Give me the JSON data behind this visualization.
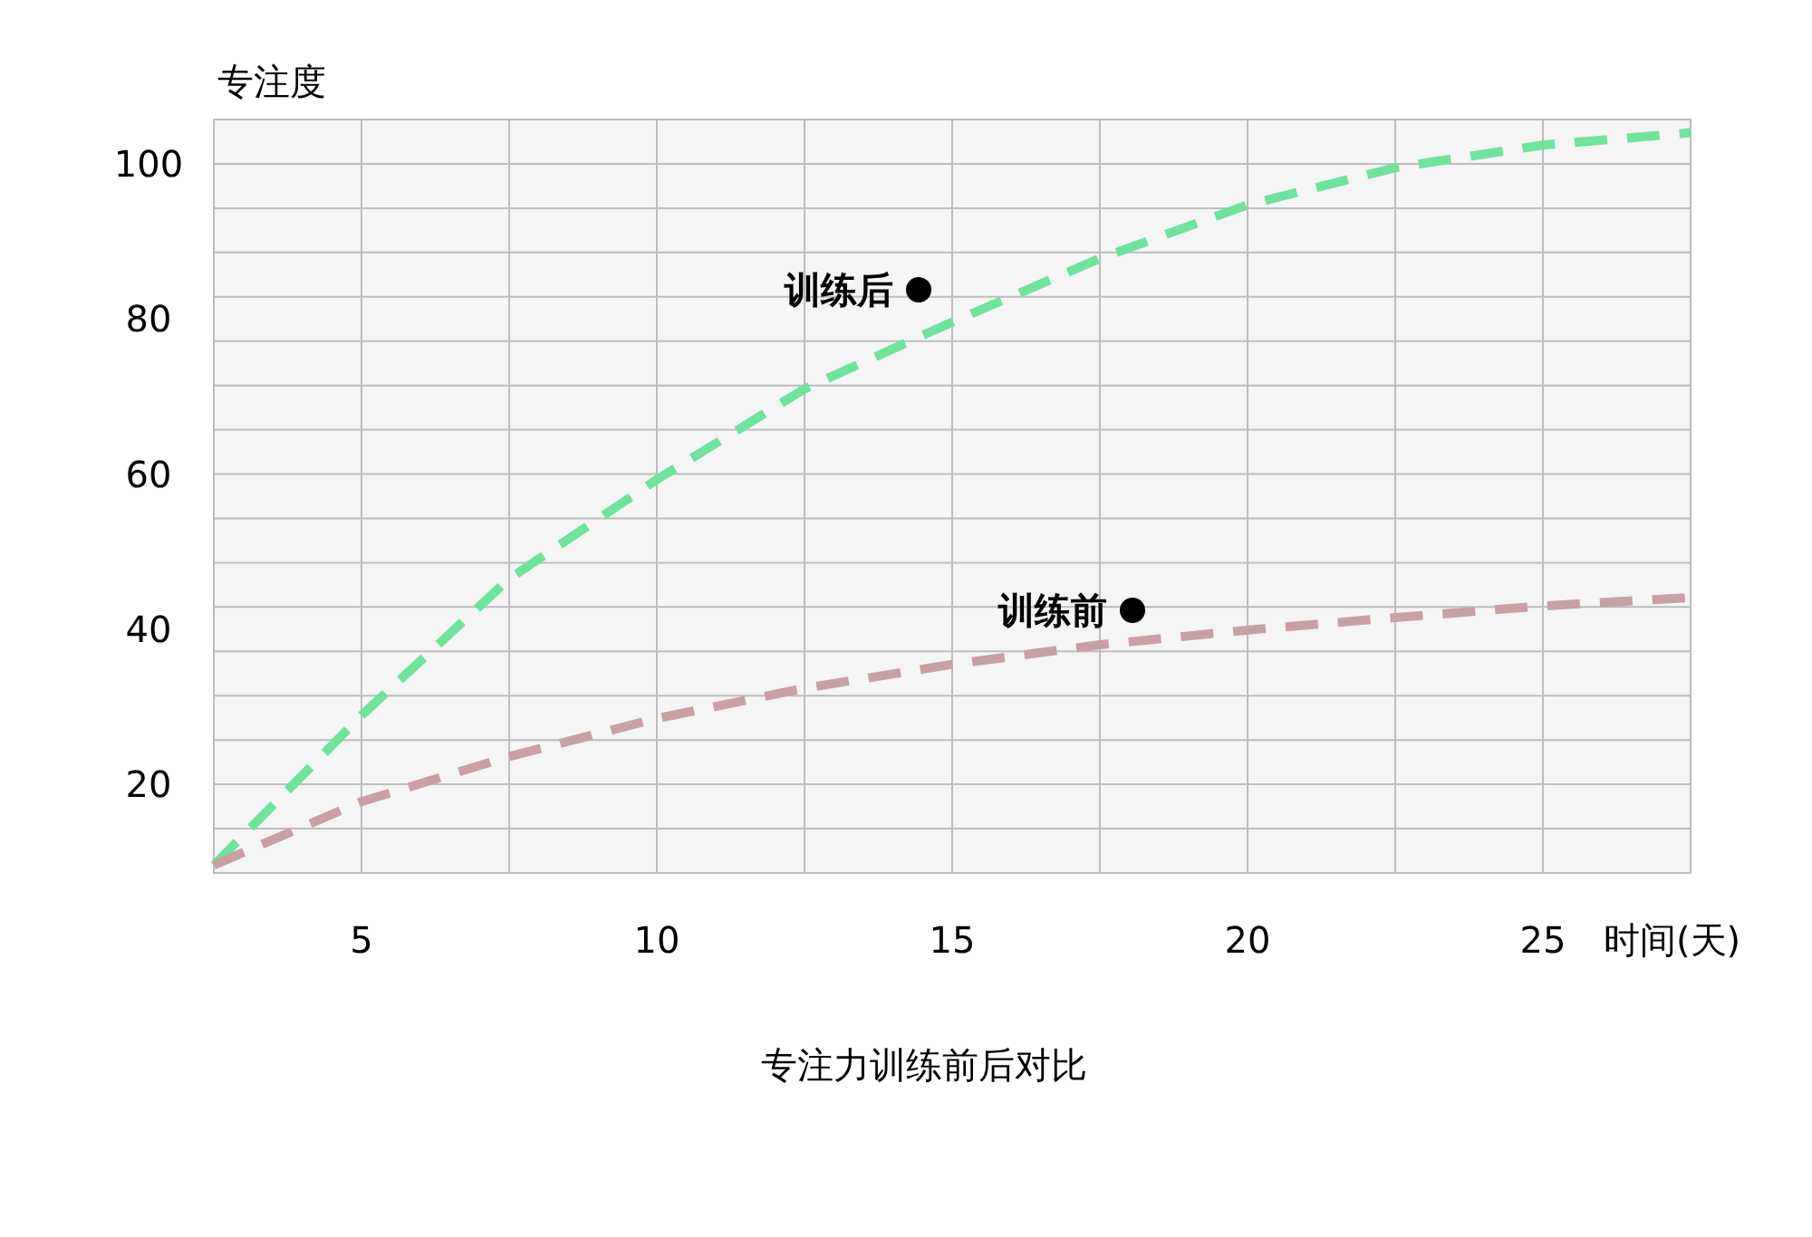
{
  "chart_data": {
    "type": "line",
    "title": "专注力训练前后对比",
    "xlabel": "时间(天)",
    "ylabel": "专注度",
    "x": [
      2.5,
      5,
      7.5,
      10,
      12.5,
      15,
      17.5,
      20,
      22.5,
      25,
      27.5
    ],
    "series": [
      {
        "color": "#6ee39d",
        "values": [
          9.6,
          28.9,
          46.5,
          59.3,
          71.0,
          79.6,
          87.8,
          94.7,
          99.5,
          102.4,
          104.0
        ]
      },
      {
        "color": "#c9a0a3",
        "values": [
          9.6,
          17.8,
          23.6,
          28.5,
          32.4,
          35.5,
          38.0,
          39.9,
          41.5,
          43.0,
          44.1
        ]
      }
    ],
    "annotations": [
      "训练后",
      "训练前"
    ],
    "xlim": [
      2.5,
      27.5
    ],
    "xticks": [
      {
        "value": 5,
        "label": "5"
      },
      {
        "value": 7.5,
        "label": null
      },
      {
        "value": 10,
        "label": "10"
      },
      {
        "value": 12.5,
        "label": null
      },
      {
        "value": 15,
        "label": "15"
      },
      {
        "value": 17.5,
        "label": null
      },
      {
        "value": 20,
        "label": "20"
      },
      {
        "value": 22.5,
        "label": null
      },
      {
        "value": 25,
        "label": "25"
      }
    ],
    "ylim": [
      8.6,
      105.7
    ],
    "yticks": [
      20,
      40,
      60,
      80,
      100
    ],
    "grid": true,
    "line_style": "dashed",
    "marker": "none"
  }
}
